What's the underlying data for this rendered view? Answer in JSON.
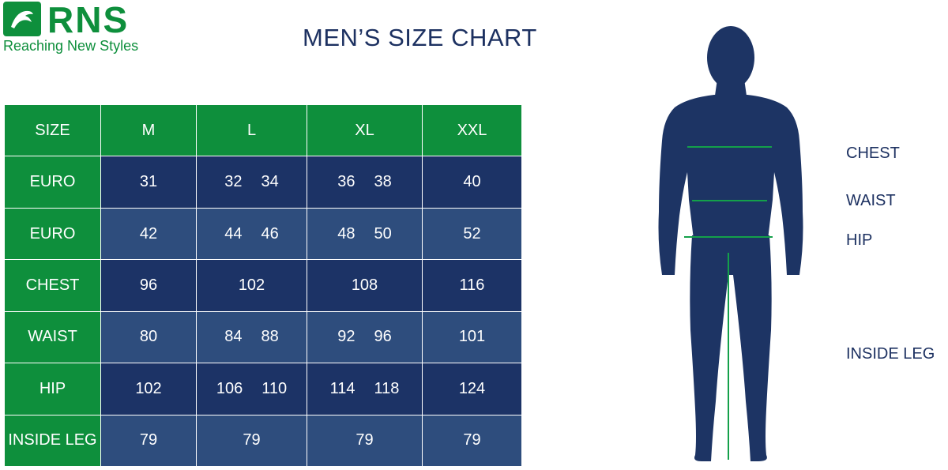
{
  "brand": {
    "name": "RNS",
    "tagline": "Reaching New Styles",
    "color": "#0e8f3c"
  },
  "title": "MEN’S SIZE CHART",
  "colors": {
    "header_green": "#0e8f3c",
    "dark_navy": "#1c3366",
    "light_navy": "#2e4d7d",
    "figure": "#1d3464"
  },
  "table": {
    "header": [
      "SIZE",
      "M",
      "L",
      "XL",
      "XXL"
    ],
    "rows": [
      {
        "label": "EURO",
        "cells": [
          [
            "31"
          ],
          [
            "32",
            "34"
          ],
          [
            "36",
            "38"
          ],
          [
            "40"
          ]
        ]
      },
      {
        "label": "EURO",
        "cells": [
          [
            "42"
          ],
          [
            "44",
            "46"
          ],
          [
            "48",
            "50"
          ],
          [
            "52"
          ]
        ]
      },
      {
        "label": "CHEST",
        "cells": [
          [
            "96"
          ],
          [
            "102"
          ],
          [
            "108"
          ],
          [
            "116"
          ]
        ]
      },
      {
        "label": "WAIST",
        "cells": [
          [
            "80"
          ],
          [
            "84",
            "88"
          ],
          [
            "92",
            "96"
          ],
          [
            "101"
          ]
        ]
      },
      {
        "label": "HIP",
        "cells": [
          [
            "102"
          ],
          [
            "106",
            "110"
          ],
          [
            "114",
            "118"
          ],
          [
            "124"
          ]
        ]
      },
      {
        "label": "INSIDE LEG",
        "cells": [
          [
            "79"
          ],
          [
            "79"
          ],
          [
            "79"
          ],
          [
            "79"
          ]
        ]
      }
    ]
  },
  "figure_labels": {
    "chest": "CHEST",
    "waist": "WAIST",
    "hip": "HIP",
    "inside_leg": "INSIDE LEG"
  }
}
